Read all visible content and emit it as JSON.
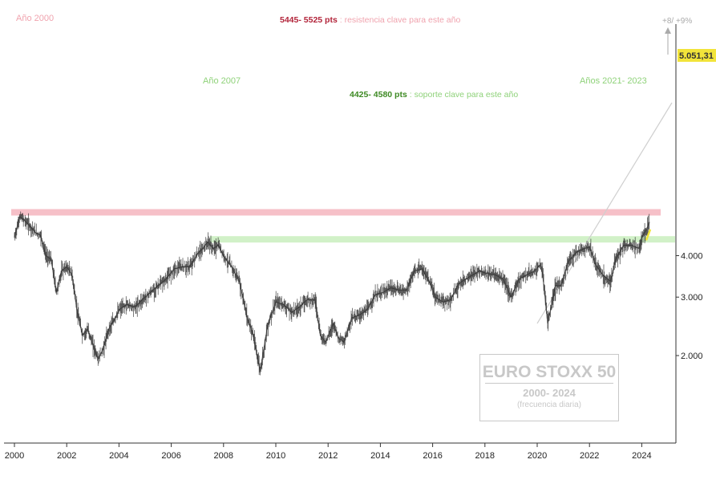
{
  "chart_data": {
    "type": "line",
    "title": "EURO STOXX 50",
    "subtitle": "2000- 2024",
    "note": "(frecuencia diaria)",
    "y_scale": "log",
    "ylim": [
      1650,
      6000
    ],
    "xlim": [
      2000,
      2025.1
    ],
    "x_ticks": [
      2000,
      2002,
      2004,
      2006,
      2008,
      2010,
      2012,
      2014,
      2016,
      2018,
      2020,
      2022,
      2024
    ],
    "x_tick_labels": [
      "2000",
      "2002",
      "2004",
      "2006",
      "2008",
      "2010",
      "2012",
      "2014",
      "2016",
      "2018",
      "2020",
      "2022",
      "2024"
    ],
    "y_ticks": [
      2000,
      3000,
      4000
    ],
    "y_tick_labels": [
      "2.000",
      "3.000",
      "4.000"
    ],
    "last_value": 5051.31,
    "last_value_label": "5.051,31",
    "series": [
      {
        "x": [
          2000.0,
          2000.2,
          2000.4,
          2000.6,
          2000.8,
          2001.0,
          2001.2,
          2001.4,
          2001.6,
          2001.8,
          2002.0,
          2002.2,
          2002.4,
          2002.6,
          2002.8,
          2003.0,
          2003.2,
          2003.4,
          2003.6,
          2003.8,
          2004.0,
          2004.3,
          2004.6,
          2005.0,
          2005.4,
          2005.8,
          2006.1,
          2006.4,
          2006.7,
          2007.0,
          2007.2,
          2007.4,
          2007.6,
          2007.8,
          2008.0,
          2008.3,
          2008.6,
          2008.9,
          2009.1,
          2009.4,
          2009.7,
          2010.0,
          2010.3,
          2010.6,
          2010.9,
          2011.2,
          2011.5,
          2011.7,
          2011.9,
          2012.2,
          2012.4,
          2012.6,
          2012.9,
          2013.2,
          2013.5,
          2013.8,
          2014.1,
          2014.4,
          2014.7,
          2015.0,
          2015.3,
          2015.6,
          2015.9,
          2016.1,
          2016.4,
          2016.7,
          2017.0,
          2017.4,
          2017.8,
          2018.0,
          2018.4,
          2018.7,
          2019.0,
          2019.3,
          2019.6,
          2019.9,
          2020.1,
          2020.2,
          2020.4,
          2020.7,
          2020.9,
          2021.2,
          2021.5,
          2021.8,
          2022.0,
          2022.2,
          2022.5,
          2022.8,
          2023.0,
          2023.3,
          2023.6,
          2023.9,
          2024.0,
          2024.15,
          2024.3
        ],
        "values": [
          4550,
          5250,
          5100,
          4900,
          4700,
          4600,
          4000,
          3900,
          3100,
          3600,
          3700,
          3500,
          2700,
          2300,
          2400,
          2150,
          1950,
          2100,
          2400,
          2550,
          2750,
          2850,
          2800,
          3000,
          3200,
          3400,
          3650,
          3700,
          3700,
          4050,
          4200,
          4400,
          4200,
          4300,
          4000,
          3700,
          3350,
          2600,
          2350,
          1800,
          2500,
          2900,
          2850,
          2700,
          2800,
          2950,
          2950,
          2300,
          2200,
          2500,
          2250,
          2200,
          2600,
          2650,
          2750,
          3050,
          3100,
          3200,
          3150,
          3150,
          3600,
          3650,
          3300,
          3000,
          2900,
          2950,
          3300,
          3450,
          3600,
          3550,
          3500,
          3400,
          3000,
          3400,
          3500,
          3600,
          3750,
          3550,
          2500,
          3250,
          3250,
          3850,
          4100,
          4200,
          4250,
          3800,
          3500,
          3350,
          3900,
          4300,
          4300,
          4200,
          4550,
          4750,
          5051.31
        ]
      }
    ],
    "annotations": {
      "year_2000": "Año 2000",
      "year_2007": "Año 2007",
      "years_2021_2023": "Años 2021- 2023",
      "resistance_strong": "5445- 5525 pts",
      "resistance_rest": ": resistencia clave para este año",
      "support_strong": "4425- 4580 pts",
      "support_rest": ": soporte clave para este año",
      "upside": "+8/ +9%"
    },
    "bands": [
      {
        "name": "resistance",
        "from": 5445,
        "to": 5525,
        "color": "#f5b5be"
      },
      {
        "name": "support",
        "from": 4425,
        "to": 4580,
        "color": "#c9efbe"
      }
    ],
    "colors": {
      "price": "#222222",
      "resistance_text": "#b2243a",
      "resistance_label": "#f0a3ae",
      "support_text": "#3e8a24",
      "support_label": "#8fd27a",
      "trendline": "#cfcfcf",
      "highlight": "#f2e43a",
      "axis": "#333333",
      "title_box": "#c8c8c8"
    }
  }
}
